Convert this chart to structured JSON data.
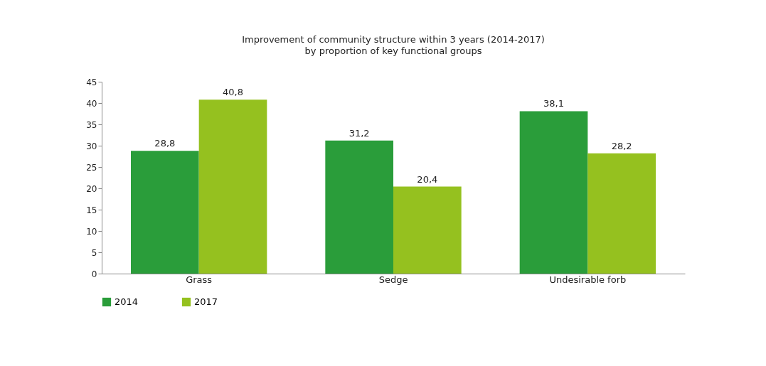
{
  "chart_data": {
    "type": "bar",
    "title": "Improvement of community structure within 3 years (2014-2017)",
    "subtitle": "by proportion of key functional groups",
    "categories": [
      "Grass",
      "Sedge",
      "Undesirable forb"
    ],
    "series": [
      {
        "name": "2014",
        "color": "#2a9d3a",
        "values": [
          28.8,
          31.2,
          38.1
        ],
        "value_labels": [
          "28,8",
          "31,2",
          "38,1"
        ]
      },
      {
        "name": "2017",
        "color": "#95c11f",
        "values": [
          40.8,
          20.4,
          28.2
        ],
        "value_labels": [
          "40,8",
          "20,4",
          "28,2"
        ]
      }
    ],
    "ylim": [
      0,
      45
    ],
    "yticks": [
      0,
      5,
      10,
      15,
      20,
      25,
      30,
      35,
      40,
      45
    ],
    "grid": false,
    "legend": "bottom"
  }
}
